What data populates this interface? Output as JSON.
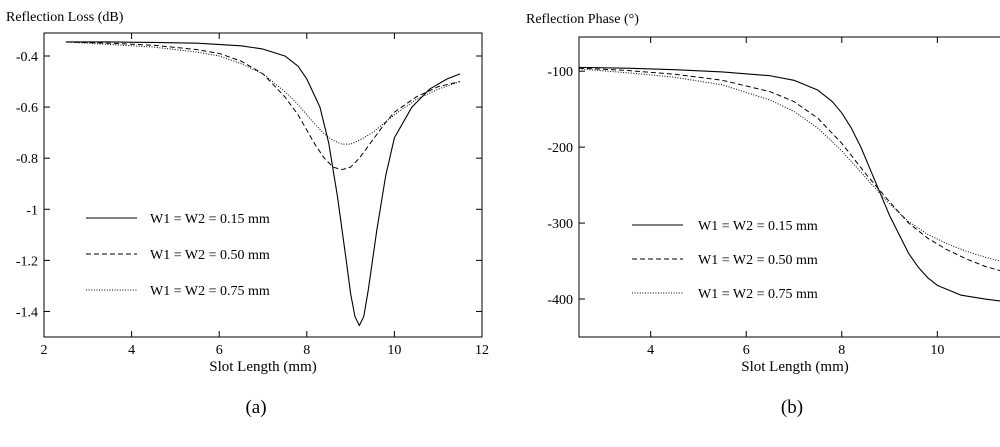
{
  "chart_data": [
    {
      "type": "line",
      "panel_label": "(a)",
      "title": "",
      "ylabel": "Reflection Loss (dB)",
      "xlabel": "Slot Length (mm)",
      "xlim": [
        2,
        12
      ],
      "ylim": [
        -1.5,
        -0.31
      ],
      "xticks": [
        2,
        4,
        6,
        8,
        10,
        12
      ],
      "yticks": [
        -0.4,
        -0.6,
        -0.8,
        -1,
        -1.2,
        -1.4
      ],
      "xtick_labels": [
        "2",
        "4",
        "6",
        "8",
        "10",
        "12"
      ],
      "ytick_labels": [
        "-0.4",
        "-0.6",
        "-0.8",
        "-1",
        "-1.2",
        "-1.4"
      ],
      "grid": false,
      "legend_position": "lower-left",
      "series": [
        {
          "name": "W1 = W2 = 0.15 mm",
          "style": "solid",
          "x": [
            2.5,
            3.5,
            4.5,
            5.5,
            6.5,
            7.0,
            7.5,
            7.8,
            8.0,
            8.3,
            8.5,
            8.7,
            8.9,
            9.0,
            9.1,
            9.2,
            9.3,
            9.4,
            9.6,
            9.8,
            10.0,
            10.4,
            10.8,
            11.2,
            11.5
          ],
          "y": [
            -0.345,
            -0.345,
            -0.347,
            -0.35,
            -0.36,
            -0.373,
            -0.4,
            -0.44,
            -0.49,
            -0.6,
            -0.74,
            -0.95,
            -1.2,
            -1.33,
            -1.42,
            -1.455,
            -1.42,
            -1.32,
            -1.08,
            -0.87,
            -0.72,
            -0.6,
            -0.53,
            -0.49,
            -0.47
          ]
        },
        {
          "name": "W1 = W2 = 0.50 mm",
          "style": "dashed",
          "x": [
            2.5,
            3.5,
            4.5,
            5.5,
            6.0,
            6.5,
            7.0,
            7.5,
            7.8,
            8.0,
            8.2,
            8.4,
            8.6,
            8.8,
            9.0,
            9.2,
            9.5,
            9.8,
            10.0,
            10.5,
            11.0,
            11.5
          ],
          "y": [
            -0.345,
            -0.35,
            -0.358,
            -0.375,
            -0.39,
            -0.42,
            -0.47,
            -0.56,
            -0.63,
            -0.69,
            -0.75,
            -0.8,
            -0.835,
            -0.845,
            -0.835,
            -0.8,
            -0.73,
            -0.66,
            -0.62,
            -0.56,
            -0.52,
            -0.5
          ]
        },
        {
          "name": "W1 = W2 = 0.75 mm",
          "style": "dotted",
          "x": [
            2.5,
            3.5,
            4.5,
            5.5,
            6.0,
            6.5,
            7.0,
            7.5,
            7.8,
            8.0,
            8.2,
            8.4,
            8.6,
            8.8,
            9.0,
            9.2,
            9.5,
            10.0,
            10.5,
            11.0,
            11.5
          ],
          "y": [
            -0.345,
            -0.355,
            -0.365,
            -0.385,
            -0.4,
            -0.43,
            -0.47,
            -0.54,
            -0.59,
            -0.63,
            -0.67,
            -0.705,
            -0.73,
            -0.745,
            -0.745,
            -0.73,
            -0.7,
            -0.63,
            -0.57,
            -0.53,
            -0.5
          ]
        }
      ]
    },
    {
      "type": "line",
      "panel_label": "(b)",
      "title": "",
      "ylabel": "Reflection Phase (°)",
      "xlabel": "Slot Length (mm)",
      "xlim": [
        2.5,
        11.5
      ],
      "ylim": [
        -450,
        -55
      ],
      "xticks": [
        4,
        6,
        8,
        10
      ],
      "yticks": [
        -100,
        -200,
        -300,
        -400
      ],
      "xtick_labels": [
        "4",
        "6",
        "8",
        "10"
      ],
      "ytick_labels": [
        "-100",
        "-200",
        "-300",
        "-400"
      ],
      "grid": false,
      "legend_position": "lower-left",
      "series": [
        {
          "name": "W1 = W2 = 0.15 mm",
          "style": "solid",
          "x": [
            2.5,
            3.5,
            4.5,
            5.5,
            6.5,
            7.0,
            7.5,
            7.8,
            8.0,
            8.2,
            8.4,
            8.6,
            8.8,
            9.0,
            9.2,
            9.4,
            9.6,
            9.8,
            10.0,
            10.5,
            11.0,
            11.5
          ],
          "y": [
            -95,
            -96,
            -98,
            -101,
            -106,
            -112,
            -125,
            -140,
            -155,
            -175,
            -200,
            -230,
            -260,
            -290,
            -315,
            -340,
            -358,
            -372,
            -382,
            -395,
            -400,
            -404
          ]
        },
        {
          "name": "W1 = W2 = 0.50 mm",
          "style": "dashed",
          "x": [
            2.5,
            3.5,
            4.5,
            5.5,
            6.5,
            7.0,
            7.5,
            8.0,
            8.5,
            9.0,
            9.4,
            9.8,
            10.2,
            10.6,
            11.0,
            11.5
          ],
          "y": [
            -96,
            -99,
            -104,
            -112,
            -127,
            -140,
            -162,
            -195,
            -235,
            -272,
            -300,
            -320,
            -335,
            -347,
            -357,
            -366
          ]
        },
        {
          "name": "W1 = W2 = 0.75 mm",
          "style": "dotted",
          "x": [
            2.5,
            3.5,
            4.5,
            5.5,
            6.5,
            7.0,
            7.5,
            8.0,
            8.5,
            9.0,
            9.4,
            9.8,
            10.2,
            10.6,
            11.0,
            11.5
          ],
          "y": [
            -97,
            -102,
            -108,
            -118,
            -138,
            -153,
            -175,
            -205,
            -240,
            -275,
            -298,
            -315,
            -327,
            -337,
            -345,
            -353
          ]
        }
      ]
    }
  ]
}
